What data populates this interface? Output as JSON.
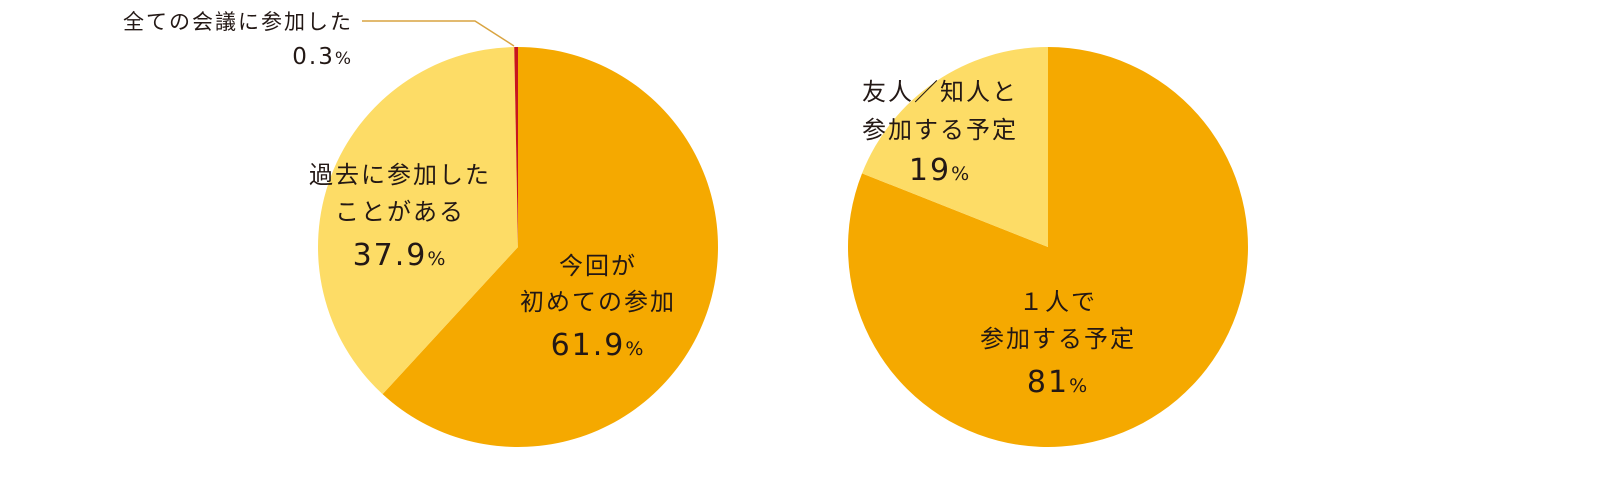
{
  "chart_data": [
    {
      "type": "pie",
      "title": "",
      "slices": [
        {
          "label": "今回が初めての参加",
          "label_lines": [
            "今回が",
            "初めての参加"
          ],
          "value": 61.9,
          "value_text": "61.9",
          "unit": "%",
          "color": "#F5A900"
        },
        {
          "label": "過去に参加したことがある",
          "label_lines": [
            "過去に参加した",
            "ことがある"
          ],
          "value": 37.9,
          "value_text": "37.9",
          "unit": "%",
          "color": "#FDDC66"
        },
        {
          "label": "全ての会議に参加した",
          "label_lines": [
            "全ての会議に参加した"
          ],
          "value": 0.3,
          "value_text": "0.3",
          "unit": "%",
          "color": "#C8161D"
        }
      ],
      "start_angle": "top",
      "direction": "clockwise"
    },
    {
      "type": "pie",
      "title": "",
      "slices": [
        {
          "label": "1人で参加する予定",
          "label_lines": [
            "１人で",
            "参加する予定"
          ],
          "value": 81,
          "value_text": "81",
          "unit": "%",
          "color": "#F5A900"
        },
        {
          "label": "友人/知人と参加する予定",
          "label_lines": [
            "友人／知人と",
            "参加する予定"
          ],
          "value": 19,
          "value_text": "19",
          "unit": "%",
          "color": "#FDDC66"
        }
      ],
      "start_angle": "top",
      "direction": "clockwise"
    }
  ],
  "colors": {
    "leader_line": "#D9A441",
    "text": "#231815"
  }
}
